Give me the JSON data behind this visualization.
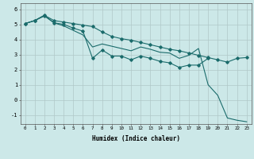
{
  "xlabel": "Humidex (Indice chaleur)",
  "bg_color": "#cce8e8",
  "grid_color": "#b0c8c8",
  "line_color": "#1a6b6b",
  "xlim": [
    -0.5,
    23.5
  ],
  "ylim": [
    -1.6,
    6.4
  ],
  "yticks": [
    -1,
    0,
    1,
    2,
    3,
    4,
    5,
    6
  ],
  "xticks": [
    0,
    1,
    2,
    3,
    4,
    5,
    6,
    7,
    8,
    9,
    10,
    11,
    12,
    13,
    14,
    15,
    16,
    17,
    18,
    19,
    20,
    21,
    22,
    23
  ],
  "line1_x": [
    0,
    1,
    2,
    3,
    4,
    5,
    6,
    7,
    8,
    9,
    10,
    11,
    12,
    13,
    14,
    15,
    16,
    17,
    18,
    19,
    20,
    21,
    22,
    23
  ],
  "line1_y": [
    5.05,
    5.25,
    5.6,
    5.25,
    5.15,
    5.05,
    4.95,
    4.85,
    4.5,
    4.2,
    4.05,
    3.95,
    3.8,
    3.65,
    3.5,
    3.35,
    3.25,
    3.1,
    2.95,
    2.8,
    2.65,
    2.5,
    2.75,
    2.8
  ],
  "line2_x": [
    0,
    1,
    2,
    3,
    4,
    5,
    6,
    7,
    8,
    9,
    10,
    11,
    12,
    13,
    14,
    15,
    16,
    17,
    18,
    19,
    20,
    21,
    22,
    23
  ],
  "line2_y": [
    5.05,
    5.25,
    5.55,
    5.1,
    5.0,
    4.75,
    4.55,
    2.75,
    3.3,
    2.9,
    2.9,
    2.65,
    2.9,
    2.75,
    2.55,
    2.45,
    2.15,
    2.3,
    2.3,
    2.75,
    null,
    null,
    null,
    null
  ],
  "line3_x": [
    0,
    1,
    2,
    3,
    4,
    5,
    6,
    7,
    8,
    9,
    10,
    11,
    12,
    13,
    14,
    15,
    16,
    17,
    18,
    19,
    20,
    21,
    22,
    23
  ],
  "line3_y": [
    5.05,
    5.25,
    5.6,
    5.1,
    4.9,
    4.6,
    4.3,
    3.5,
    3.7,
    3.55,
    3.4,
    3.25,
    3.5,
    3.35,
    3.15,
    3.1,
    2.75,
    2.95,
    3.4,
    1.0,
    0.3,
    -1.2,
    -1.35,
    -1.45
  ]
}
